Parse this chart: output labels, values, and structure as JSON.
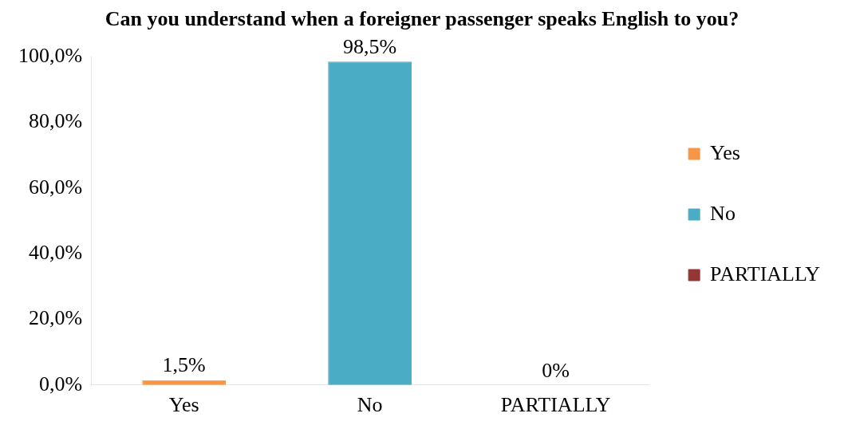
{
  "chart_data": {
    "type": "bar",
    "title": "Can you understand when a foreigner passenger speaks English to you?",
    "categories": [
      "Yes",
      "No",
      "PARTIALLY"
    ],
    "series": [
      {
        "name": "Yes",
        "color": "#f79646",
        "values": [
          1.5,
          null,
          null
        ],
        "value_labels": [
          "1,5%",
          null,
          null
        ]
      },
      {
        "name": "No",
        "color": "#4bacc6",
        "values": [
          null,
          98.5,
          null
        ],
        "value_labels": [
          null,
          "98,5%",
          null
        ]
      },
      {
        "name": "PARTIALLY",
        "color": "#943634",
        "values": [
          null,
          null,
          0
        ],
        "value_labels": [
          null,
          null,
          "0%"
        ]
      }
    ],
    "ylim": [
      0,
      100
    ],
    "yticks": [
      {
        "value": 0,
        "label": "0,0%"
      },
      {
        "value": 20,
        "label": "20,0%"
      },
      {
        "value": 40,
        "label": "40,0%"
      },
      {
        "value": 60,
        "label": "60,0%"
      },
      {
        "value": 80,
        "label": "80,0%"
      },
      {
        "value": 100,
        "label": "100,0%"
      }
    ],
    "grid": false,
    "legend": "right"
  }
}
